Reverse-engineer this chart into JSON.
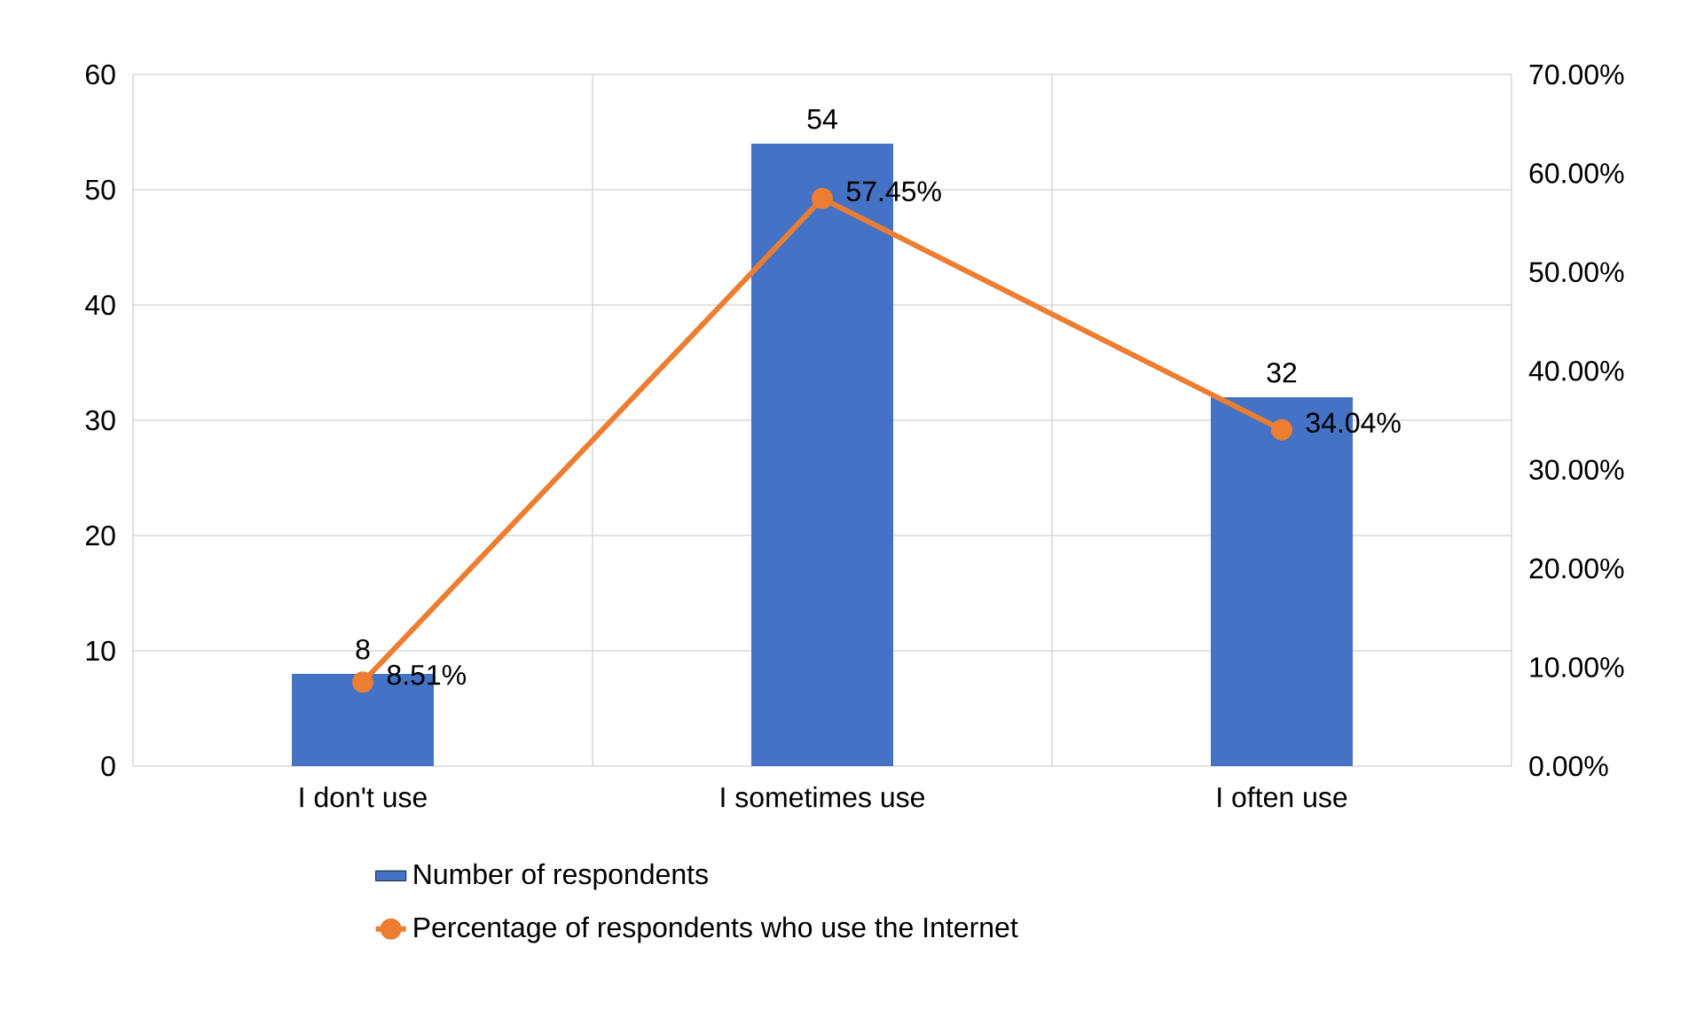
{
  "chart_data": {
    "type": "bar",
    "categories": [
      "I don't use",
      "I sometimes use",
      "I often use"
    ],
    "series": [
      {
        "name": "Number of respondents",
        "color": "#4472c4",
        "values": [
          8,
          54,
          32
        ]
      },
      {
        "name": "Percentage of respondents who use the Internet",
        "type": "line",
        "axis": "y2",
        "color": "#ed7d31",
        "values": [
          8.51,
          57.45,
          34.04
        ],
        "value_labels": [
          "8.51%",
          "57.45%",
          "34.04%"
        ]
      }
    ],
    "ylim": [
      0,
      60
    ],
    "yticks": [
      0,
      10,
      20,
      30,
      40,
      50,
      60
    ],
    "y2lim": [
      0,
      70
    ],
    "y2ticks": [
      {
        "value": 0,
        "label": "0.00%"
      },
      {
        "value": 10,
        "label": "10.00%"
      },
      {
        "value": 20,
        "label": "20.00%"
      },
      {
        "value": 30,
        "label": "30.00%"
      },
      {
        "value": 40,
        "label": "40.00%"
      },
      {
        "value": 50,
        "label": "50.00%"
      },
      {
        "value": 60,
        "label": "60.00%"
      },
      {
        "value": 70,
        "label": "70.00%"
      }
    ],
    "data_labels": true,
    "grid": true,
    "legend": "bottom",
    "marker": "circle"
  }
}
